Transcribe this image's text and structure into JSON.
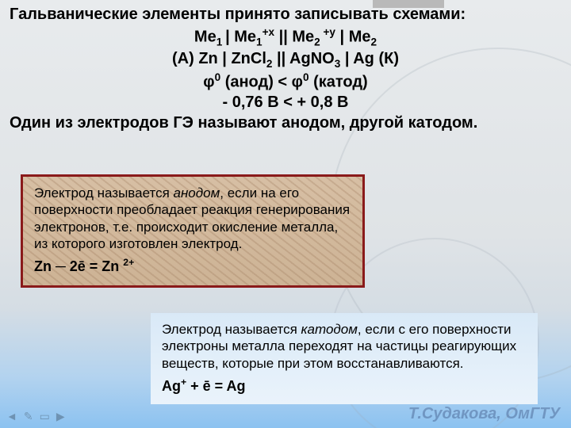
{
  "header": {
    "line1": "Гальванические элементы принято записывать схемами:",
    "scheme_generic_html": "Me<sub>1 </sub>| Me<sub>1</sub><sup>+x</sup> || Me<sub>2</sub><sup> +y</sup> | Me<sub>2</sub>",
    "scheme_example_html": "(А) Zn | ZnCl<sub>2</sub> || AgNO<sub>3</sub> | Ag (К)",
    "phi_line": "φ<sup>0</sup> (анод) < φ<sup>0</sup> (катод)",
    "volts_line": "- 0,76 В < + 0,8 В",
    "line_end": "Один из электродов ГЭ называют анодом, другой катодом."
  },
  "anode": {
    "text_html": "Электрод называется <em>анодом</em>, если на его поверхности преобладает реакция генерирования электронов, т.е. происходит окисление металла, из которого изготовлен электрод.",
    "equation_html": "Zn ─ 2ē = Zn <sup>2+</sup>",
    "border_color": "#8a1a1a",
    "bg_base": "#d7bfa4"
  },
  "cathode": {
    "text_html": "Электрод называется <em>катодом</em>, если с его поверхности электроны  металла переходят на частицы реагирующих веществ, которые при этом восстанавливаются.",
    "equation_html": "Ag<sup>+</sup> + ē = Ag",
    "bg": "#d9e9f7"
  },
  "footer": {
    "author": "Т.Судакова, ОмГТУ"
  },
  "controls": {
    "icons": [
      "◄",
      "✎",
      "▭",
      "▶"
    ]
  }
}
